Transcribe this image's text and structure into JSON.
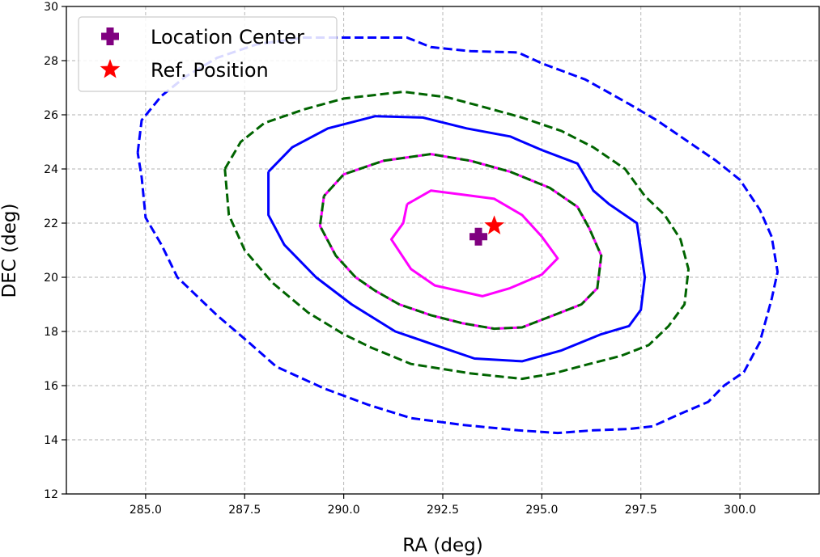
{
  "chart_data": {
    "type": "line",
    "title": "",
    "xlabel": "RA (deg)",
    "ylabel": "DEC (deg)",
    "xlim": [
      283.0,
      302.0
    ],
    "ylim": [
      12,
      30
    ],
    "grid": true,
    "legend_position": "top-left",
    "xticks": [
      285.0,
      287.5,
      290.0,
      292.5,
      295.0,
      297.5,
      300.0
    ],
    "xtick_labels": [
      "285.0",
      "287.5",
      "290.0",
      "292.5",
      "295.0",
      "297.5",
      "300.0"
    ],
    "yticks": [
      12,
      14,
      16,
      18,
      20,
      22,
      24,
      26,
      28,
      30
    ],
    "ytick_labels": [
      "12",
      "14",
      "16",
      "18",
      "20",
      "22",
      "24",
      "26",
      "28",
      "30"
    ],
    "markers": [
      {
        "name": "Location Center",
        "symbol": "plus-filled",
        "color": "#800080",
        "x": 293.4,
        "y": 21.5
      },
      {
        "name": "Ref. Position",
        "symbol": "star",
        "color": "#ff0000",
        "x": 293.8,
        "y": 21.9
      }
    ],
    "series": [
      {
        "name": "outer blue dashed",
        "color": "#0000ff",
        "dash": "dashed",
        "points": [
          [
            284.8,
            24.6
          ],
          [
            284.9,
            25.8
          ],
          [
            285.4,
            26.7
          ],
          [
            286.0,
            27.4
          ],
          [
            286.8,
            28.1
          ],
          [
            287.8,
            28.6
          ],
          [
            289.0,
            28.85
          ],
          [
            290.5,
            28.85
          ],
          [
            291.6,
            28.85
          ],
          [
            292.2,
            28.5
          ],
          [
            293.2,
            28.35
          ],
          [
            294.4,
            28.3
          ],
          [
            295.0,
            27.9
          ],
          [
            296.1,
            27.3
          ],
          [
            297.2,
            26.4
          ],
          [
            297.9,
            25.8
          ],
          [
            298.7,
            25.0
          ],
          [
            299.4,
            24.3
          ],
          [
            300.0,
            23.6
          ],
          [
            300.5,
            22.5
          ],
          [
            300.8,
            21.5
          ],
          [
            300.95,
            20.2
          ],
          [
            300.8,
            19.2
          ],
          [
            300.5,
            17.6
          ],
          [
            300.1,
            16.5
          ],
          [
            299.6,
            16.0
          ],
          [
            299.2,
            15.4
          ],
          [
            298.4,
            14.9
          ],
          [
            297.8,
            14.5
          ],
          [
            297.2,
            14.4
          ],
          [
            296.3,
            14.35
          ],
          [
            295.4,
            14.25
          ],
          [
            294.4,
            14.35
          ],
          [
            293.0,
            14.55
          ],
          [
            291.7,
            14.8
          ],
          [
            290.6,
            15.3
          ],
          [
            289.5,
            15.9
          ],
          [
            288.3,
            16.7
          ],
          [
            287.6,
            17.6
          ],
          [
            286.8,
            18.6
          ],
          [
            285.8,
            20.0
          ],
          [
            285.4,
            21.2
          ],
          [
            285.0,
            22.2
          ],
          [
            284.9,
            23.7
          ],
          [
            284.8,
            24.6
          ]
        ]
      },
      {
        "name": "green dashed",
        "color": "#006400",
        "dash": "dashed",
        "points": [
          [
            287.0,
            24.0
          ],
          [
            287.4,
            25.0
          ],
          [
            288.0,
            25.7
          ],
          [
            289.0,
            26.2
          ],
          [
            290.0,
            26.6
          ],
          [
            291.5,
            26.85
          ],
          [
            292.6,
            26.65
          ],
          [
            293.5,
            26.3
          ],
          [
            294.5,
            25.9
          ],
          [
            295.5,
            25.4
          ],
          [
            296.3,
            24.8
          ],
          [
            297.1,
            24.0
          ],
          [
            297.6,
            23.0
          ],
          [
            298.1,
            22.3
          ],
          [
            298.5,
            21.4
          ],
          [
            298.7,
            20.3
          ],
          [
            298.6,
            19.0
          ],
          [
            298.2,
            18.2
          ],
          [
            297.7,
            17.5
          ],
          [
            297.0,
            17.1
          ],
          [
            296.2,
            16.8
          ],
          [
            295.3,
            16.45
          ],
          [
            294.5,
            16.25
          ],
          [
            293.2,
            16.45
          ],
          [
            291.7,
            16.8
          ],
          [
            290.7,
            17.4
          ],
          [
            290.0,
            17.9
          ],
          [
            289.1,
            18.7
          ],
          [
            288.2,
            19.8
          ],
          [
            287.5,
            21.0
          ],
          [
            287.1,
            22.3
          ],
          [
            287.0,
            24.0
          ]
        ]
      },
      {
        "name": "inner blue solid",
        "color": "#0000ff",
        "dash": "solid",
        "points": [
          [
            288.1,
            23.9
          ],
          [
            288.7,
            24.8
          ],
          [
            289.6,
            25.5
          ],
          [
            290.8,
            25.95
          ],
          [
            292.0,
            25.9
          ],
          [
            293.1,
            25.5
          ],
          [
            294.2,
            25.2
          ],
          [
            295.0,
            24.7
          ],
          [
            295.9,
            24.2
          ],
          [
            296.3,
            23.2
          ],
          [
            296.7,
            22.7
          ],
          [
            297.4,
            22.0
          ],
          [
            297.5,
            21.0
          ],
          [
            297.6,
            20.0
          ],
          [
            297.5,
            18.8
          ],
          [
            297.2,
            18.2
          ],
          [
            296.5,
            17.9
          ],
          [
            295.5,
            17.3
          ],
          [
            294.5,
            16.9
          ],
          [
            293.3,
            17.0
          ],
          [
            292.3,
            17.5
          ],
          [
            291.3,
            18.0
          ],
          [
            290.2,
            19.0
          ],
          [
            289.3,
            20.0
          ],
          [
            288.5,
            21.2
          ],
          [
            288.1,
            22.3
          ],
          [
            288.1,
            23.9
          ]
        ]
      },
      {
        "name": "magenta dashed",
        "color": "#ff00ff",
        "dash": "dashed",
        "points": [
          [
            289.5,
            23.0
          ],
          [
            290.0,
            23.8
          ],
          [
            291.0,
            24.3
          ],
          [
            292.2,
            24.55
          ],
          [
            293.2,
            24.3
          ],
          [
            294.2,
            23.9
          ],
          [
            295.2,
            23.3
          ],
          [
            295.9,
            22.6
          ],
          [
            296.2,
            21.8
          ],
          [
            296.5,
            20.8
          ],
          [
            296.4,
            19.6
          ],
          [
            296.0,
            19.0
          ],
          [
            295.3,
            18.6
          ],
          [
            294.5,
            18.15
          ],
          [
            293.8,
            18.1
          ],
          [
            293.0,
            18.3
          ],
          [
            292.2,
            18.6
          ],
          [
            291.4,
            19.0
          ],
          [
            290.8,
            19.5
          ],
          [
            290.3,
            20.0
          ],
          [
            289.8,
            20.8
          ],
          [
            289.4,
            21.9
          ],
          [
            289.5,
            23.0
          ]
        ]
      },
      {
        "name": "green dashed inner",
        "color": "#006400",
        "dash": "dashed-offset",
        "points": [
          [
            289.5,
            23.0
          ],
          [
            290.0,
            23.8
          ],
          [
            291.0,
            24.3
          ],
          [
            292.2,
            24.55
          ],
          [
            293.2,
            24.3
          ],
          [
            294.2,
            23.9
          ],
          [
            295.2,
            23.3
          ],
          [
            295.9,
            22.6
          ],
          [
            296.2,
            21.8
          ],
          [
            296.5,
            20.8
          ],
          [
            296.4,
            19.6
          ],
          [
            296.0,
            19.0
          ],
          [
            295.3,
            18.6
          ],
          [
            294.5,
            18.15
          ],
          [
            293.8,
            18.1
          ],
          [
            293.0,
            18.3
          ],
          [
            292.2,
            18.6
          ],
          [
            291.4,
            19.0
          ],
          [
            290.8,
            19.5
          ],
          [
            290.3,
            20.0
          ],
          [
            289.8,
            20.8
          ],
          [
            289.4,
            21.9
          ],
          [
            289.5,
            23.0
          ]
        ]
      },
      {
        "name": "magenta solid",
        "color": "#ff00ff",
        "dash": "solid",
        "points": [
          [
            291.6,
            22.7
          ],
          [
            292.2,
            23.2
          ],
          [
            293.0,
            23.05
          ],
          [
            293.8,
            22.9
          ],
          [
            294.5,
            22.3
          ],
          [
            295.0,
            21.5
          ],
          [
            295.4,
            20.7
          ],
          [
            295.0,
            20.1
          ],
          [
            294.2,
            19.6
          ],
          [
            293.5,
            19.3
          ],
          [
            292.3,
            19.7
          ],
          [
            291.7,
            20.3
          ],
          [
            291.2,
            21.4
          ],
          [
            291.5,
            22.0
          ],
          [
            291.6,
            22.7
          ]
        ]
      }
    ]
  },
  "legend": {
    "items": [
      {
        "label": "Location Center",
        "symbol": "plus-filled",
        "color": "#800080"
      },
      {
        "label": "Ref. Position",
        "symbol": "star",
        "color": "#ff0000"
      }
    ]
  }
}
